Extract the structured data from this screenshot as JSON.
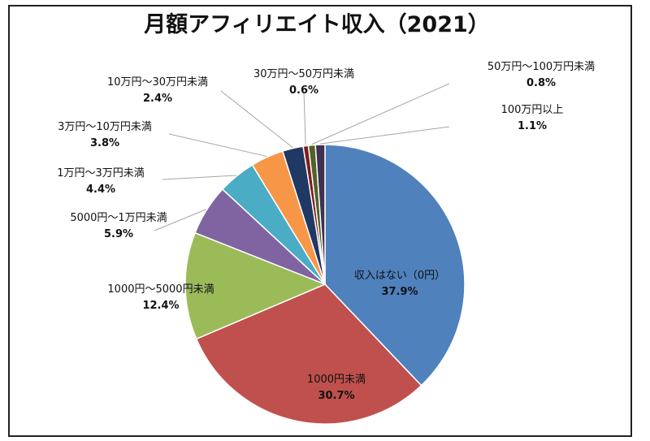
{
  "chart_data": {
    "type": "pie",
    "title": "月額アフィリエイト収入（2021）",
    "slices": [
      {
        "label": "収入はない（0円）",
        "value": 37.9,
        "display": "37.9%",
        "color": "#4F81BD"
      },
      {
        "label": "1000円未満",
        "value": 30.7,
        "display": "30.7%",
        "color": "#C0504D"
      },
      {
        "label": "1000円～5000円未満",
        "value": 12.4,
        "display": "12.4%",
        "color": "#9BBB59"
      },
      {
        "label": "5000円～1万円未満",
        "value": 5.9,
        "display": "5.9%",
        "color": "#8064A2"
      },
      {
        "label": "1万円～3万円未満",
        "value": 4.4,
        "display": "4.4%",
        "color": "#4BACC6"
      },
      {
        "label": "3万円～10万円未満",
        "value": 3.8,
        "display": "3.8%",
        "color": "#F79646"
      },
      {
        "label": "10万円～30万円未満",
        "value": 2.4,
        "display": "2.4%",
        "color": "#1F3864"
      },
      {
        "label": "30万円～50万円未満",
        "value": 0.6,
        "display": "0.6%",
        "color": "#7F1D1D"
      },
      {
        "label": "50万円～100万円未満",
        "value": 0.8,
        "display": "0.8%",
        "color": "#4F6228"
      },
      {
        "label": "100万円以上",
        "value": 1.1,
        "display": "1.1%",
        "color": "#3F3151"
      }
    ],
    "legend": "none",
    "label_placement": [
      "inside",
      "inside",
      "outside",
      "outside",
      "outside",
      "outside",
      "outside",
      "outside",
      "outside",
      "outside"
    ]
  }
}
